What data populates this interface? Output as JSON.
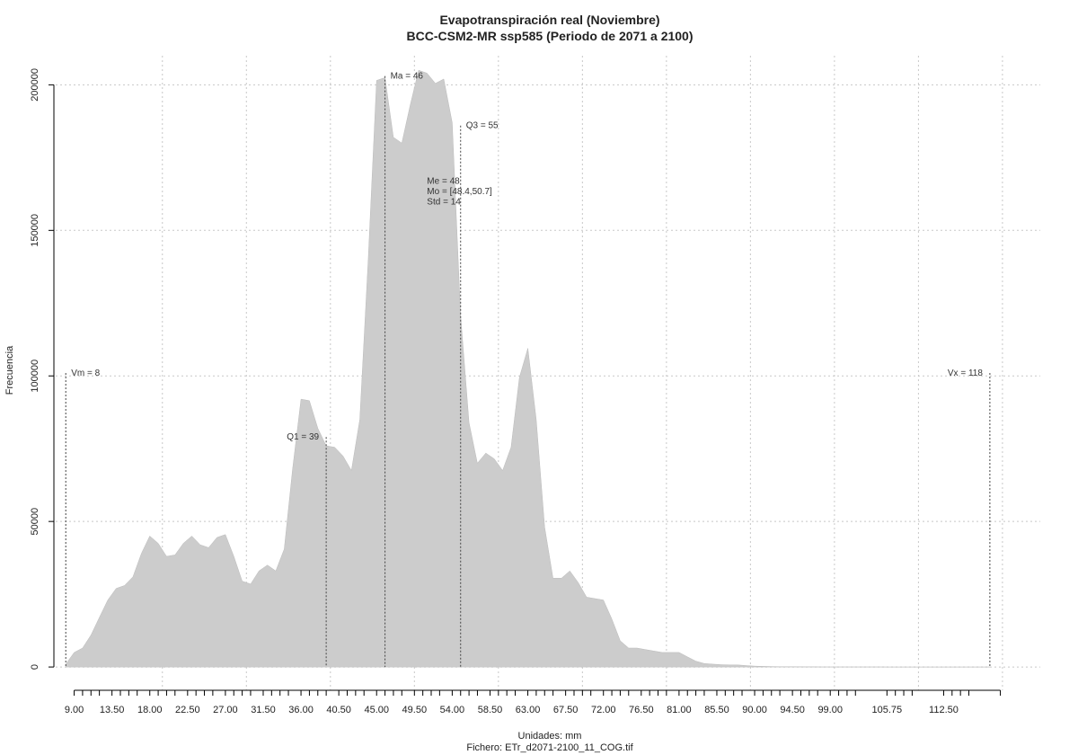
{
  "chart_data": {
    "type": "area",
    "title": "Evapotranspiración real (Noviembre)",
    "subtitle": "BCC-CSM2-MR ssp585 (Periodo de 2071 a 2100)",
    "xlabel": "Unidades: mm",
    "ylabel": "Frecuencia",
    "footer": "Fichero: ETr_d2071-2100_11_COG.tif",
    "xlim": [
      6.8,
      124
    ],
    "ylim": [
      -8000,
      210000
    ],
    "grid": true,
    "fill_color": "#cccccc",
    "x_ticks": [
      9,
      10,
      11,
      12,
      13.5,
      14.5,
      15.5,
      16.5,
      18,
      19,
      20,
      21,
      22.5,
      23.5,
      24.5,
      25.5,
      27,
      28,
      29,
      30,
      31.5,
      32.5,
      33.5,
      34.5,
      36,
      37,
      38,
      39,
      40.5,
      41.5,
      42.5,
      43.5,
      45,
      46,
      47,
      48,
      49.5,
      50.5,
      51.5,
      52.5,
      54,
      55,
      56,
      57,
      58.5,
      59.5,
      60.5,
      61.5,
      63,
      64,
      65,
      66,
      67.5,
      68.5,
      69.5,
      70.5,
      72,
      73,
      74,
      75,
      76.5,
      77.5,
      78.5,
      79.5,
      81,
      82,
      83,
      84,
      85.5,
      86.5,
      87.5,
      88.5,
      90,
      91,
      92,
      93,
      94.5,
      95.5,
      96.5,
      97.5,
      99,
      100,
      101,
      102,
      105.75,
      106.75,
      107.75,
      108.75,
      112.5,
      113.5,
      114.5,
      115.5,
      119.25
    ],
    "x_tick_labels": [
      "9.00",
      "13.50",
      "18.00",
      "22.50",
      "27.00",
      "31.50",
      "36.00",
      "40.50",
      "45.00",
      "49.50",
      "54.00",
      "58.50",
      "63.00",
      "67.50",
      "72.00",
      "76.50",
      "81.00",
      "85.50",
      "90.00",
      "94.50",
      "99.00",
      "105.75",
      "112.50"
    ],
    "x_grid": [
      19.5,
      29.5,
      39.5,
      49.5,
      59.5,
      69.5,
      79.5,
      89.5,
      99.5,
      109.5,
      119.5
    ],
    "y_ticks": [
      0,
      50000,
      100000,
      150000,
      200000
    ],
    "y_tick_labels": [
      "0",
      "50000",
      "100000",
      "150000",
      "200000"
    ],
    "series": [
      {
        "x": [
          8,
          9,
          10,
          11,
          12,
          13,
          14,
          15,
          16,
          17,
          18,
          19,
          20,
          21,
          22,
          23,
          24,
          25,
          26,
          27,
          28,
          29,
          30,
          31,
          32,
          33,
          34,
          35,
          36,
          37,
          38,
          39,
          40,
          41,
          42,
          43,
          44,
          45,
          46,
          47,
          48,
          49,
          50,
          51,
          52,
          53,
          54,
          55,
          56,
          57,
          58,
          59,
          60,
          61,
          62,
          63,
          64,
          65,
          66,
          67,
          68,
          69,
          70,
          71,
          72,
          73,
          74,
          75,
          76,
          77,
          78,
          79,
          80,
          81,
          82,
          83,
          84,
          85,
          86,
          87,
          88,
          89,
          90,
          91,
          92,
          93,
          94,
          95,
          96,
          97,
          98,
          99,
          100,
          101,
          102,
          103,
          104,
          105,
          106,
          107,
          108,
          109,
          110,
          111,
          112,
          113,
          114,
          115,
          116,
          117,
          118
        ],
        "y": [
          1000,
          5000,
          6500,
          11000,
          17000,
          23000,
          27000,
          28000,
          31000,
          39000,
          45000,
          42500,
          38000,
          38500,
          42500,
          45000,
          42000,
          41000,
          44500,
          45500,
          38000,
          29500,
          28500,
          33000,
          35000,
          33000,
          40500,
          68000,
          92000,
          91500,
          82000,
          76000,
          75500,
          72500,
          67500,
          85000,
          140000,
          201500,
          202500,
          182000,
          180000,
          193000,
          205000,
          204000,
          200500,
          202000,
          187000,
          121000,
          84000,
          70000,
          73500,
          71500,
          67500,
          75500,
          99500,
          109500,
          85000,
          48000,
          30500,
          30500,
          33000,
          29000,
          24000,
          23500,
          23000,
          16500,
          9000,
          6500,
          6500,
          6000,
          5500,
          5000,
          5000,
          5000,
          3500,
          2000,
          1200,
          1000,
          800,
          700,
          700,
          500,
          300,
          200,
          150,
          100,
          100,
          80,
          60,
          50,
          40,
          30,
          30,
          25,
          20,
          20,
          15,
          15,
          10,
          10,
          8,
          8,
          6,
          5,
          5,
          4,
          4,
          3,
          3,
          2,
          2
        ]
      }
    ],
    "annotations": [
      {
        "label": "Vm = 8",
        "x": 8,
        "y_top": 101000
      },
      {
        "label": "Q1 = 39",
        "x": 39,
        "y_top": 79000
      },
      {
        "label": "Ma = 46",
        "x": 46,
        "y_top": 203000
      },
      {
        "label": "Q3 = 55",
        "x": 55,
        "y_top": 186000
      },
      {
        "label": "Vx = 118",
        "x": 118,
        "y_top": 101000
      }
    ],
    "stats_text": [
      "Me = 48",
      "Mo = [48.4,50.7]",
      "Std = 14"
    ]
  }
}
